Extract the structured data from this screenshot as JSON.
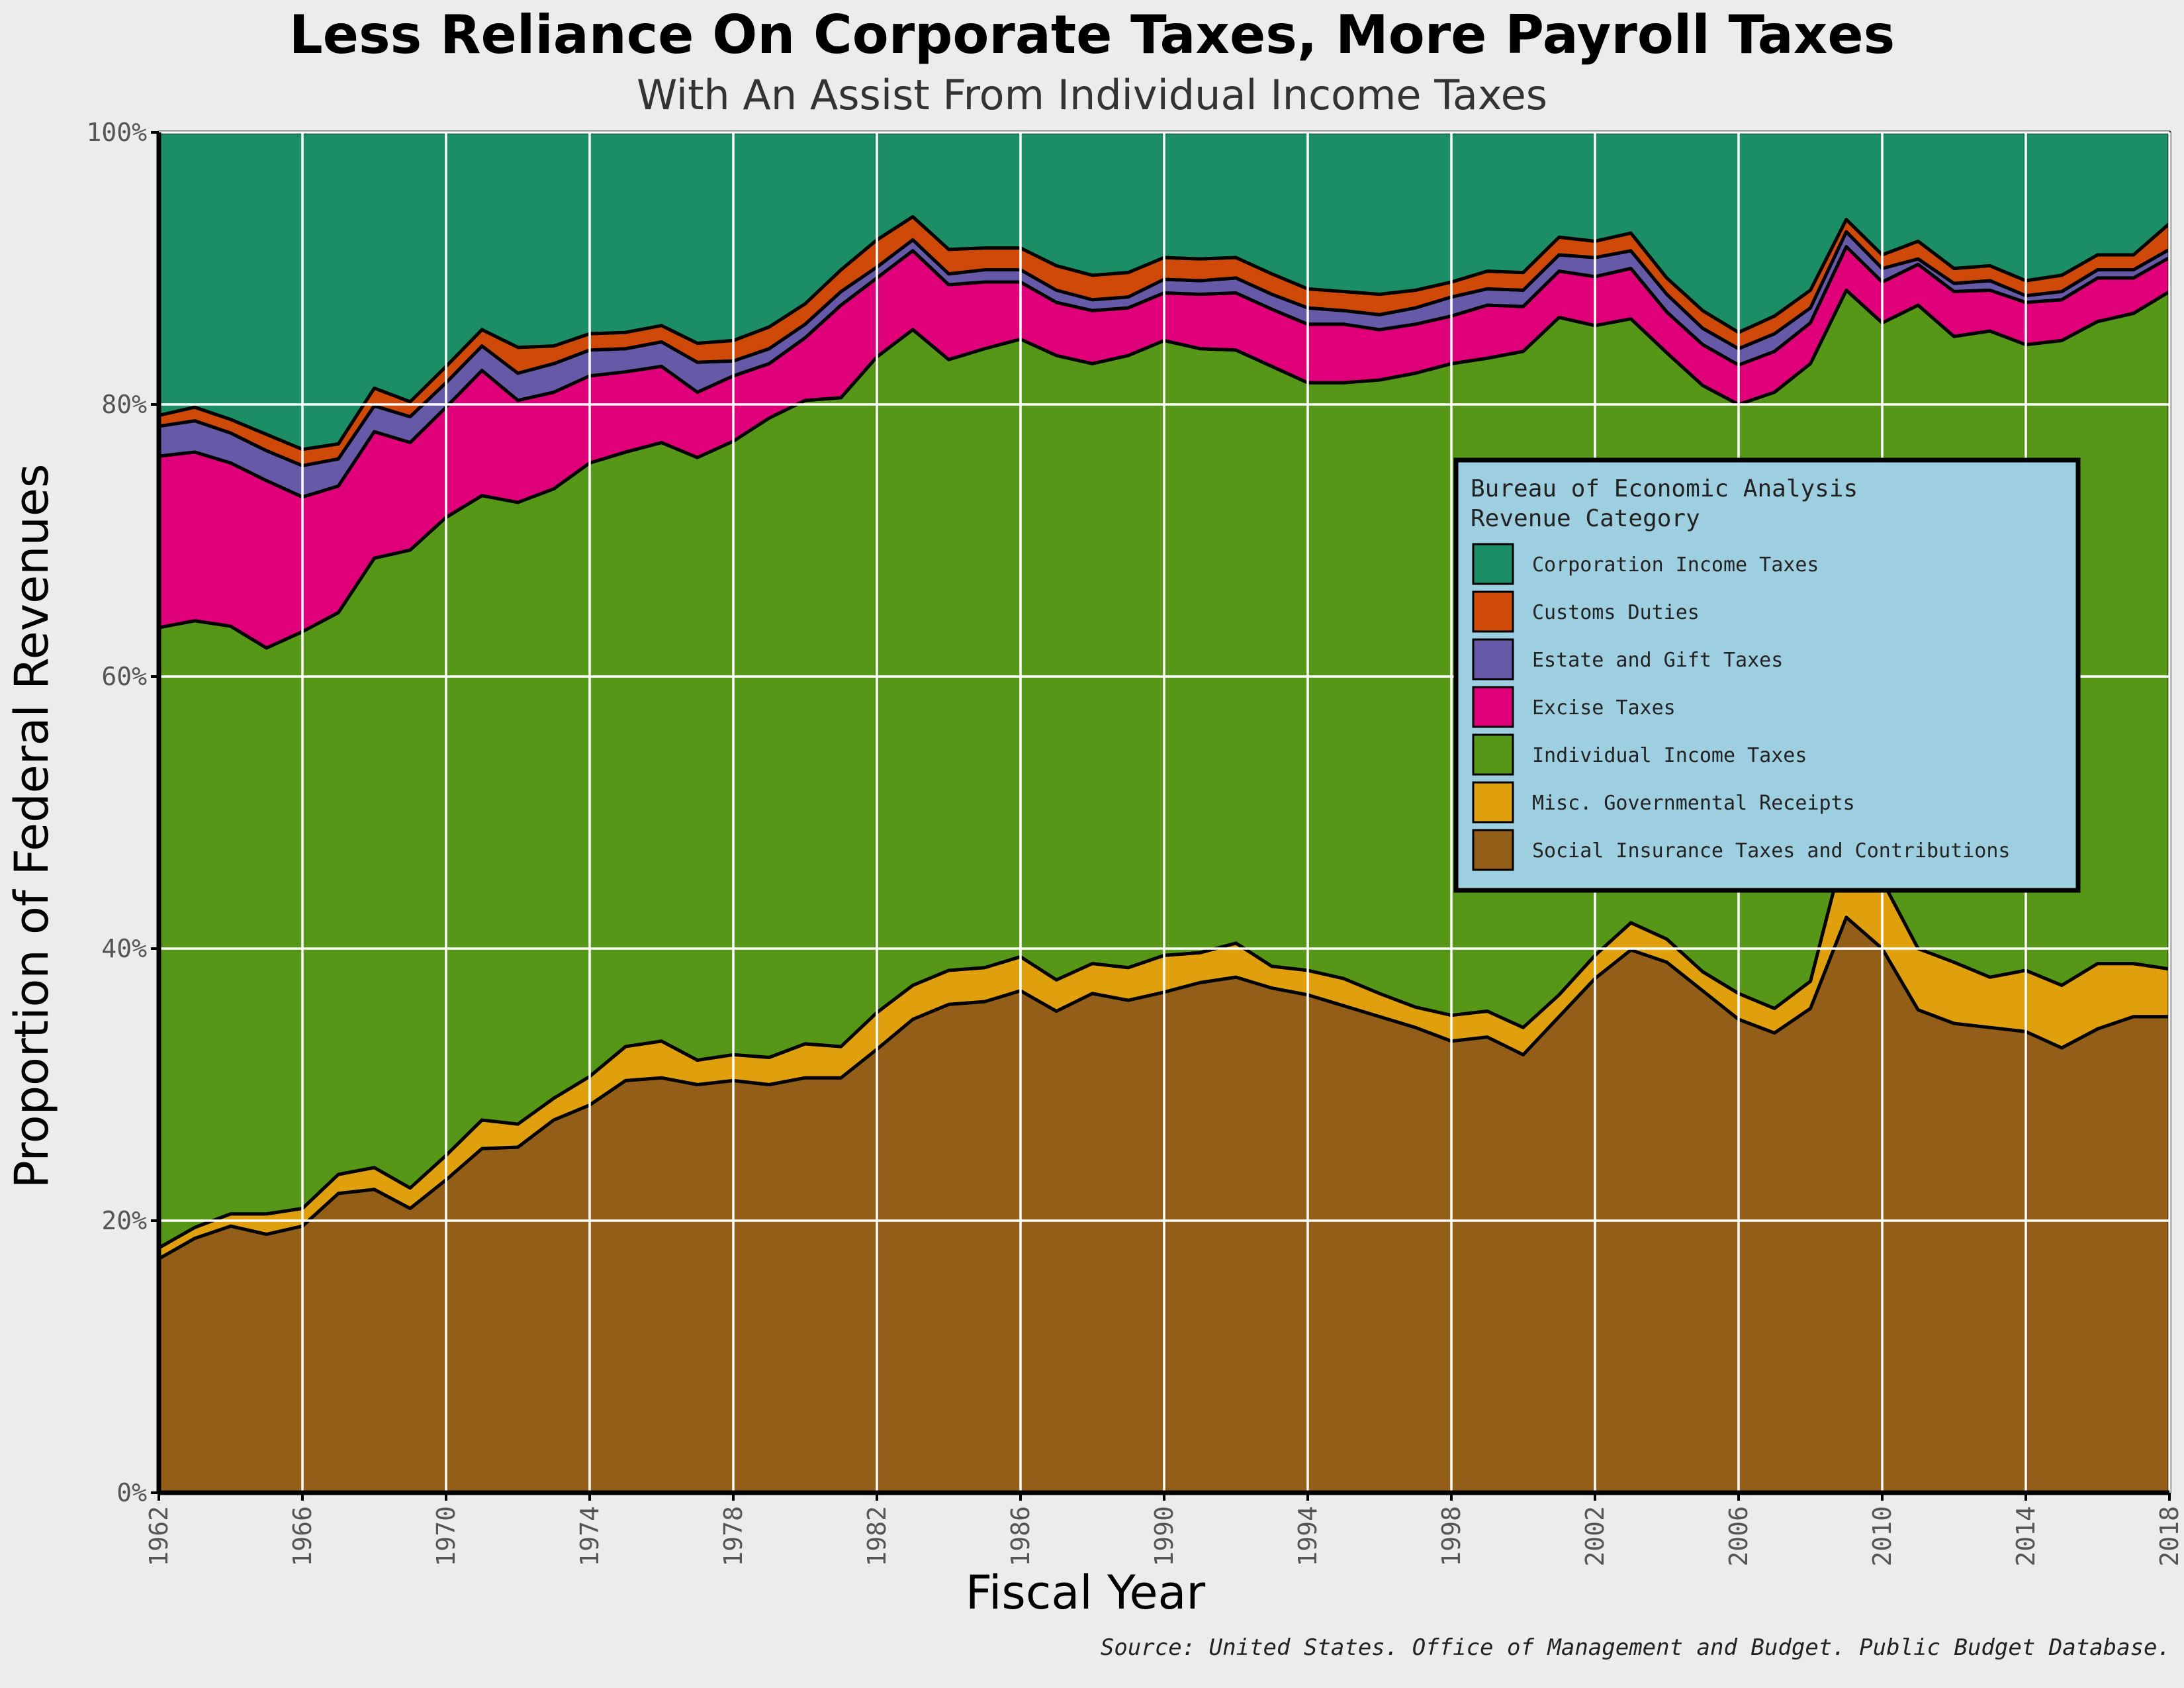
{
  "chart_data": {
    "type": "area",
    "stacked": true,
    "normalized": true,
    "title": "Less Reliance On Corporate Taxes, More Payroll Taxes",
    "subtitle": "With An Assist From Individual Income Taxes",
    "xlabel": "Fiscal Year",
    "ylabel": "Proportion of Federal Revenues",
    "caption": "Source: United States. Office of Management and Budget. Public Budget Database.",
    "xlim": [
      1962,
      2018
    ],
    "ylim": [
      0,
      100
    ],
    "x_ticks": [
      "1962",
      "1966",
      "1970",
      "1974",
      "1978",
      "1982",
      "1986",
      "1990",
      "1994",
      "1998",
      "2002",
      "2006",
      "2010",
      "2014",
      "2018"
    ],
    "y_ticks": [
      "0%",
      "20%",
      "40%",
      "60%",
      "80%",
      "100%"
    ],
    "grid": true,
    "legend": {
      "position": "right",
      "title": [
        "Bureau of Economic Analysis",
        "Revenue Category"
      ]
    },
    "x": [
      1962,
      1963,
      1964,
      1965,
      1966,
      1967,
      1968,
      1969,
      1970,
      1971,
      1972,
      1973,
      1974,
      1975,
      1976,
      1977,
      1978,
      1979,
      1980,
      1981,
      1982,
      1983,
      1984,
      1985,
      1986,
      1987,
      1988,
      1989,
      1990,
      1991,
      1992,
      1993,
      1994,
      1995,
      1996,
      1997,
      1998,
      1999,
      2000,
      2001,
      2002,
      2003,
      2004,
      2005,
      2006,
      2007,
      2008,
      2009,
      2010,
      2011,
      2012,
      2013,
      2014,
      2015,
      2016,
      2017,
      2018
    ],
    "series": [
      {
        "name": "Social Insurance Taxes and Contributions",
        "color": "#935f18",
        "values": [
          17.2,
          18.7,
          19.6,
          19.0,
          19.6,
          22.0,
          22.3,
          20.9,
          23.0,
          25.3,
          25.4,
          27.4,
          28.5,
          30.3,
          30.5,
          30.0,
          30.3,
          30.0,
          30.5,
          30.5,
          32.6,
          34.8,
          35.9,
          36.1,
          36.9,
          35.4,
          36.7,
          36.2,
          36.8,
          37.5,
          37.9,
          37.1,
          36.6,
          35.8,
          35.0,
          34.2,
          33.2,
          33.5,
          32.2,
          35.0,
          37.8,
          39.9,
          39.0,
          36.9,
          34.8,
          33.8,
          35.6,
          42.3,
          40.0,
          35.5,
          34.5,
          34.2,
          33.9,
          32.7,
          34.1,
          35.0,
          35.0
        ]
      },
      {
        "name": "Misc. Governmental Receipts",
        "color": "#e0a00e",
        "values": [
          0.8,
          0.8,
          0.9,
          1.5,
          1.3,
          1.4,
          1.6,
          1.5,
          1.8,
          2.1,
          1.7,
          1.6,
          2.1,
          2.5,
          2.7,
          1.8,
          1.9,
          2.0,
          2.5,
          2.3,
          2.7,
          2.5,
          2.5,
          2.5,
          2.5,
          2.3,
          2.2,
          2.4,
          2.7,
          2.2,
          2.5,
          1.6,
          1.8,
          2.0,
          1.7,
          1.5,
          1.9,
          1.9,
          2.0,
          1.6,
          1.7,
          2.0,
          1.7,
          1.4,
          1.9,
          1.8,
          2.0,
          5.6,
          5.0,
          4.5,
          4.5,
          3.7,
          4.5,
          4.6,
          4.8,
          3.9,
          3.5
        ]
      },
      {
        "name": "Individual Income Taxes",
        "color": "#569717",
        "values": [
          45.6,
          44.6,
          43.2,
          41.6,
          42.4,
          41.3,
          44.8,
          46.9,
          46.9,
          45.9,
          45.7,
          44.8,
          45.1,
          43.7,
          44.0,
          44.3,
          45.1,
          47.0,
          47.3,
          47.7,
          48.2,
          48.2,
          44.9,
          45.5,
          45.4,
          45.9,
          44.1,
          45.0,
          45.2,
          44.4,
          43.6,
          44.1,
          43.2,
          43.8,
          45.1,
          46.6,
          47.9,
          48.0,
          49.7,
          49.8,
          46.3,
          44.4,
          43.1,
          43.1,
          43.3,
          45.3,
          45.4,
          40.5,
          41.0,
          47.3,
          46.0,
          47.5,
          46.0,
          47.4,
          47.2,
          47.8,
          49.8
        ]
      },
      {
        "name": "Excise Taxes",
        "color": "#e0007a",
        "values": [
          12.6,
          12.4,
          12.0,
          12.3,
          9.9,
          9.3,
          9.3,
          7.9,
          8.1,
          9.2,
          7.5,
          7.1,
          6.4,
          5.9,
          5.6,
          4.8,
          4.8,
          4.0,
          4.6,
          6.8,
          5.8,
          5.8,
          5.5,
          4.9,
          4.2,
          3.9,
          3.9,
          3.5,
          3.5,
          4.0,
          4.2,
          4.2,
          4.3,
          4.3,
          3.7,
          3.6,
          3.5,
          3.9,
          3.3,
          3.4,
          3.6,
          3.7,
          3.0,
          3.0,
          2.9,
          3.0,
          3.0,
          3.2,
          3.0,
          3.0,
          3.3,
          3.0,
          3.1,
          3.0,
          3.2,
          2.6,
          2.5
        ]
      },
      {
        "name": "Estate and Gift Taxes",
        "color": "#6659a7",
        "values": [
          2.2,
          2.3,
          2.2,
          2.2,
          2.3,
          2.0,
          1.9,
          1.9,
          1.8,
          1.8,
          2.0,
          2.1,
          1.9,
          1.7,
          1.8,
          2.2,
          1.1,
          1.1,
          1.0,
          1.0,
          0.8,
          0.8,
          0.8,
          0.9,
          0.9,
          0.9,
          0.8,
          0.8,
          1.0,
          1.0,
          1.1,
          1.1,
          1.2,
          1.0,
          1.1,
          1.2,
          1.4,
          1.2,
          1.2,
          1.2,
          1.4,
          1.3,
          1.3,
          1.2,
          1.2,
          1.3,
          1.1,
          1.1,
          1.0,
          0.4,
          0.6,
          0.7,
          0.5,
          0.6,
          0.6,
          0.6,
          0.6
        ]
      },
      {
        "name": "Customs Duties",
        "color": "#cf4a08",
        "values": [
          0.8,
          1.0,
          1.0,
          1.2,
          1.2,
          1.1,
          1.3,
          1.1,
          1.2,
          1.2,
          1.9,
          1.3,
          1.2,
          1.2,
          1.2,
          1.4,
          1.5,
          1.6,
          1.5,
          1.6,
          2.0,
          1.7,
          1.8,
          1.6,
          1.6,
          1.8,
          1.8,
          1.8,
          1.6,
          1.6,
          1.5,
          1.5,
          1.4,
          1.4,
          1.5,
          1.3,
          1.1,
          1.3,
          1.3,
          1.3,
          1.2,
          1.3,
          1.2,
          1.3,
          1.2,
          1.3,
          1.3,
          0.9,
          1.0,
          1.3,
          1.1,
          1.1,
          1.1,
          1.2,
          1.1,
          1.1,
          1.9
        ]
      },
      {
        "name": "Corporation Income Taxes",
        "color": "#1b8e66",
        "values": [
          20.8,
          20.2,
          21.1,
          22.2,
          23.3,
          22.9,
          18.8,
          19.8,
          17.2,
          14.5,
          15.8,
          15.7,
          14.8,
          14.7,
          14.2,
          15.5,
          15.3,
          14.3,
          12.6,
          10.1,
          7.9,
          6.2,
          8.6,
          8.5,
          8.5,
          9.8,
          10.5,
          10.3,
          9.2,
          9.3,
          9.2,
          10.4,
          11.5,
          11.7,
          11.9,
          11.6,
          11.0,
          10.2,
          10.3,
          7.7,
          8.0,
          7.4,
          10.7,
          13.1,
          14.7,
          14.5,
          11.6,
          6.4,
          9.0,
          8.0,
          10.0,
          9.8,
          10.9,
          10.5,
          9.0,
          9.0,
          6.7
        ]
      }
    ]
  }
}
